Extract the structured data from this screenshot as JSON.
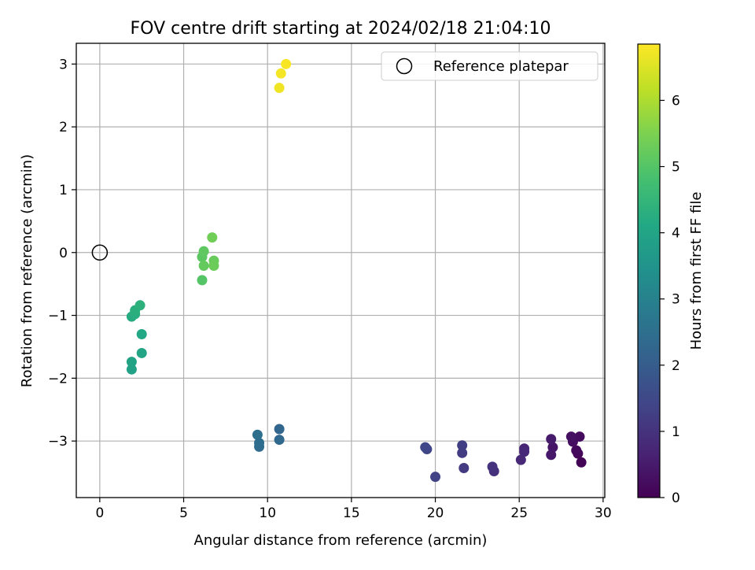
{
  "chart_data": {
    "type": "scatter",
    "title": "FOV centre drift starting at 2024/02/18 21:04:10",
    "xlabel": "Angular distance from reference (arcmin)",
    "ylabel": "Rotation from reference (arcmin)",
    "xlim": [
      -1.4,
      30.1
    ],
    "ylim": [
      -3.9,
      3.33
    ],
    "xticks": [
      0,
      5,
      10,
      15,
      20,
      25,
      30
    ],
    "yticks": [
      -3,
      -2,
      -1,
      0,
      1,
      2,
      3
    ],
    "grid": true,
    "legend": {
      "placement": "top-right",
      "entries": [
        "Reference platepar"
      ]
    },
    "reference_point": {
      "x": 0,
      "y": 0
    },
    "colorbar": {
      "label": "Hours from first FF file",
      "range": [
        0,
        6.85
      ],
      "ticks": [
        0,
        1,
        2,
        3,
        4,
        5,
        6
      ],
      "colormap": "viridis"
    },
    "points": [
      {
        "x": 28.7,
        "y": -3.34,
        "c": 0.05
      },
      {
        "x": 28.5,
        "y": -3.2,
        "c": 0.1
      },
      {
        "x": 28.4,
        "y": -3.15,
        "c": 0.15
      },
      {
        "x": 28.6,
        "y": -2.93,
        "c": 0.2
      },
      {
        "x": 28.2,
        "y": -3.01,
        "c": 0.25
      },
      {
        "x": 28.1,
        "y": -2.93,
        "c": 0.3
      },
      {
        "x": 27.0,
        "y": -3.1,
        "c": 0.4
      },
      {
        "x": 26.9,
        "y": -3.22,
        "c": 0.45
      },
      {
        "x": 26.9,
        "y": -2.97,
        "c": 0.5
      },
      {
        "x": 25.3,
        "y": -3.12,
        "c": 0.7
      },
      {
        "x": 25.3,
        "y": -3.17,
        "c": 0.75
      },
      {
        "x": 25.1,
        "y": -3.3,
        "c": 0.8
      },
      {
        "x": 23.5,
        "y": -3.48,
        "c": 0.95
      },
      {
        "x": 23.4,
        "y": -3.41,
        "c": 1.0
      },
      {
        "x": 21.7,
        "y": -3.43,
        "c": 1.15
      },
      {
        "x": 21.6,
        "y": -3.19,
        "c": 1.2
      },
      {
        "x": 21.6,
        "y": -3.07,
        "c": 1.25
      },
      {
        "x": 20.0,
        "y": -3.57,
        "c": 1.35
      },
      {
        "x": 19.5,
        "y": -3.13,
        "c": 1.4
      },
      {
        "x": 19.4,
        "y": -3.1,
        "c": 1.45
      },
      {
        "x": 10.7,
        "y": -2.81,
        "c": 2.25
      },
      {
        "x": 10.7,
        "y": -2.98,
        "c": 2.3
      },
      {
        "x": 9.5,
        "y": -3.09,
        "c": 2.4
      },
      {
        "x": 9.5,
        "y": -3.03,
        "c": 2.45
      },
      {
        "x": 9.4,
        "y": -2.9,
        "c": 2.5
      },
      {
        "x": 2.5,
        "y": -1.6,
        "c": 4.0
      },
      {
        "x": 2.5,
        "y": -1.3,
        "c": 4.1
      },
      {
        "x": 1.9,
        "y": -1.86,
        "c": 3.9
      },
      {
        "x": 1.9,
        "y": -1.74,
        "c": 3.95
      },
      {
        "x": 1.9,
        "y": -1.02,
        "c": 4.2
      },
      {
        "x": 2.1,
        "y": -0.98,
        "c": 4.25
      },
      {
        "x": 2.1,
        "y": -0.92,
        "c": 4.3
      },
      {
        "x": 2.4,
        "y": -0.84,
        "c": 4.35
      },
      {
        "x": 6.1,
        "y": -0.44,
        "c": 5.0
      },
      {
        "x": 6.1,
        "y": -0.07,
        "c": 5.1
      },
      {
        "x": 6.2,
        "y": 0.02,
        "c": 5.15
      },
      {
        "x": 6.2,
        "y": -0.21,
        "c": 5.2
      },
      {
        "x": 6.8,
        "y": -0.13,
        "c": 5.25
      },
      {
        "x": 6.8,
        "y": -0.21,
        "c": 5.3
      },
      {
        "x": 6.7,
        "y": 0.24,
        "c": 5.35
      },
      {
        "x": 10.7,
        "y": 2.62,
        "c": 6.7
      },
      {
        "x": 10.8,
        "y": 2.85,
        "c": 6.75
      },
      {
        "x": 11.1,
        "y": 3.0,
        "c": 6.8
      }
    ]
  }
}
